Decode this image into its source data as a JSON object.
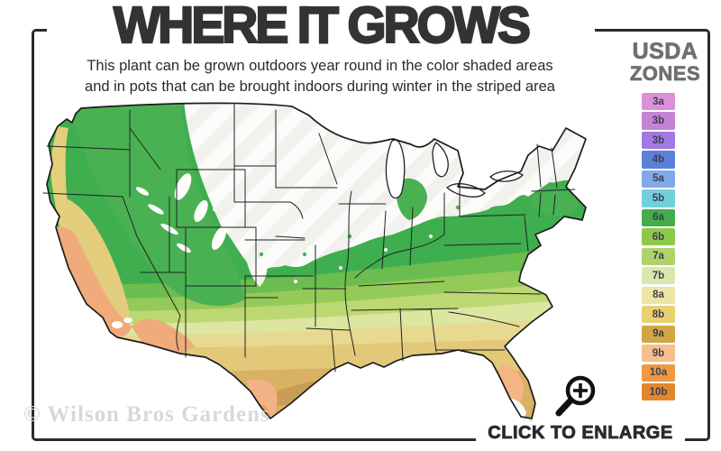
{
  "header": {
    "title": "WHERE IT GROWS",
    "subtitle_line1": "This plant can be grown outdoors year round in the color shaded areas",
    "subtitle_line2": "and in pots that can be brought indoors during winter in the striped area"
  },
  "legend": {
    "title_line1": "USDA",
    "title_line2": "ZONES",
    "zones": [
      {
        "label": "3a",
        "color": "#db90d9"
      },
      {
        "label": "3b",
        "color": "#c583d4"
      },
      {
        "label": "3b",
        "color": "#a179e2"
      },
      {
        "label": "4b",
        "color": "#5b80d9"
      },
      {
        "label": "5a",
        "color": "#82a8e8"
      },
      {
        "label": "5b",
        "color": "#74cfdd"
      },
      {
        "label": "6a",
        "color": "#43ad4c"
      },
      {
        "label": "6b",
        "color": "#8dc84b"
      },
      {
        "label": "7a",
        "color": "#b0d369"
      },
      {
        "label": "7b",
        "color": "#d9e9ae"
      },
      {
        "label": "8a",
        "color": "#eee4a5"
      },
      {
        "label": "8b",
        "color": "#e9d170"
      },
      {
        "label": "9a",
        "color": "#d2a546"
      },
      {
        "label": "9b",
        "color": "#f5c08d"
      },
      {
        "label": "10a",
        "color": "#f0993e"
      },
      {
        "label": "10b",
        "color": "#e2862e"
      }
    ]
  },
  "map": {
    "description": "US hardiness zone map: striped white north, green mid band, yellow and orange south",
    "palette": {
      "striped_area": "#f2f2ee",
      "green_dark": "#3fae4f",
      "green_mid": "#6cbd50",
      "green_yellow": "#93ca58",
      "yellow_green_light": "#bcd873",
      "pale_green": "#dce6a0",
      "pale_khaki": "#e7d98f",
      "yellow": "#e2c878",
      "gold": "#d9b164",
      "tan": "#c89e55",
      "peach": "#f3b285",
      "orange": "#ee9c5e",
      "salmon_coast": "#efab7a",
      "state_line": "#222222"
    }
  },
  "footer": {
    "watermark": "© Wilson Bros Gardens",
    "cta": "CLICK TO ENLARGE"
  },
  "frame_color": "#2b2b2b"
}
